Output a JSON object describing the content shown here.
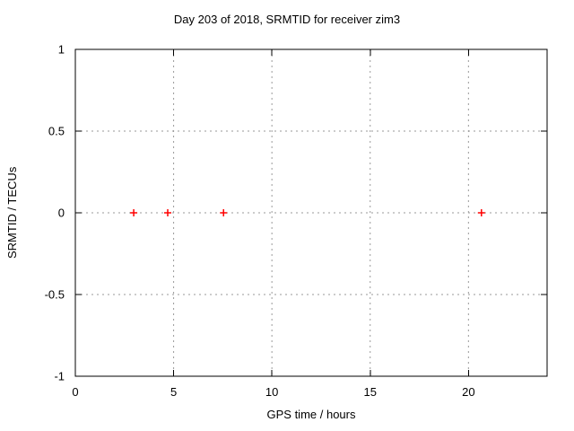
{
  "chart_data": {
    "type": "scatter",
    "title": "Day 203 of 2018, SRMTID for receiver zim3",
    "xlabel": "GPS time / hours",
    "ylabel": "SRMTID / TECUs",
    "xlim": [
      0,
      24
    ],
    "ylim": [
      -1,
      1
    ],
    "grid": true,
    "legend": false,
    "xticks": [
      {
        "v": 0,
        "label": "0"
      },
      {
        "v": 5,
        "label": "5"
      },
      {
        "v": 10,
        "label": "10"
      },
      {
        "v": 15,
        "label": "15"
      },
      {
        "v": 20,
        "label": "20"
      }
    ],
    "yticks": [
      {
        "v": 1,
        "label": "1"
      },
      {
        "v": 0.5,
        "label": "0.5"
      },
      {
        "v": 0,
        "label": "0"
      },
      {
        "v": -0.5,
        "label": "-0.5"
      },
      {
        "v": -1,
        "label": "-1"
      }
    ],
    "series": [
      {
        "marker": "plus",
        "color": "#ff0000",
        "points": [
          {
            "x": 2.97,
            "y": 0
          },
          {
            "x": 4.7,
            "y": 0
          },
          {
            "x": 7.54,
            "y": 0
          },
          {
            "x": 20.66,
            "y": 0
          }
        ]
      }
    ]
  },
  "colors": {
    "background": "#ffffff",
    "border": "#000000",
    "grid": "#9a9a9a",
    "text": "#000000",
    "marker": "#ff0000"
  }
}
